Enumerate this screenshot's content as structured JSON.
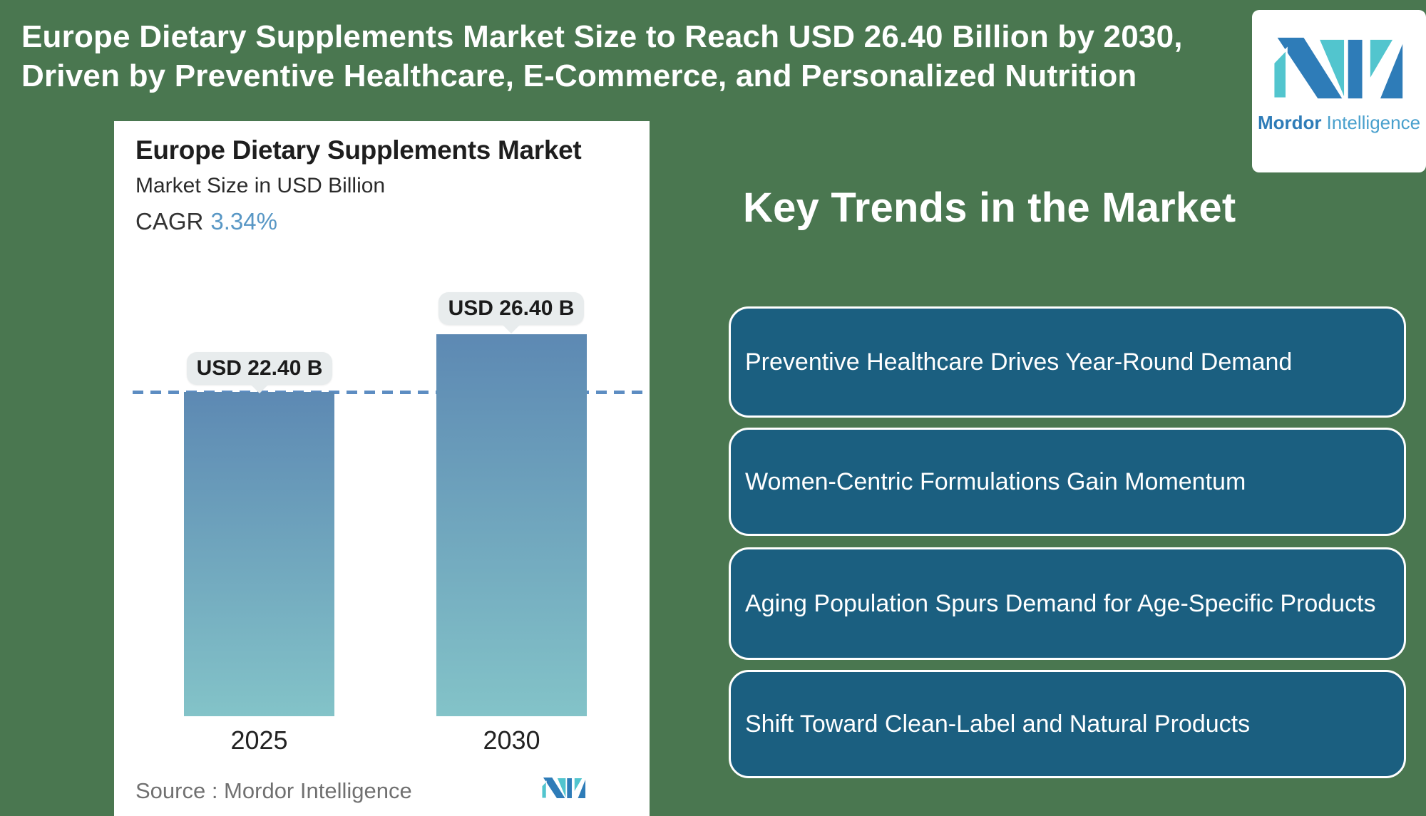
{
  "page": {
    "background_color": "#4a7750"
  },
  "header": {
    "line1": "Europe Dietary Supplements Market Size to Reach USD 26.40 Billion by 2030,",
    "line2": "Driven by Preventive Healthcare, E-Commerce, and Personalized Nutrition"
  },
  "brand": {
    "name_bold": "Mordor",
    "name_light": "Intelligence",
    "logo_dark_blue": "#2e7cb8",
    "logo_teal": "#52c5ce"
  },
  "chart_panel": {
    "title": "Europe Dietary Supplements Market",
    "subtitle": "Market Size in USD Billion",
    "cagr_label": "CAGR",
    "cagr_value": "3.34%",
    "source_text": "Source :  Mordor Intelligence"
  },
  "chart_data": {
    "type": "bar",
    "title": "Europe Dietary Supplements Market",
    "ylabel": "Market Size in USD Billion",
    "categories": [
      "2025",
      "2030"
    ],
    "values": [
      22.4,
      26.4
    ],
    "bar_labels": [
      "USD 22.40 B",
      "USD 26.40 B"
    ],
    "cagr_percent": 3.34,
    "ylim": [
      0,
      28
    ],
    "grid": "off",
    "legend": "none",
    "reference_line_value": 22.4,
    "reference_line_style": "dashed",
    "reference_line_color": "#5d8dc2",
    "bar_gradient": [
      "#5d89b3",
      "#83c3c8"
    ],
    "label_pill_color": "#e8eced"
  },
  "trends": {
    "title": "Key Trends in the Market",
    "box_color": "#1b5f80",
    "items": [
      {
        "label": "Preventive Healthcare Drives Year-Round Demand"
      },
      {
        "label": "Women-Centric Formulations Gain Momentum"
      },
      {
        "label": "Aging Population Spurs Demand for Age-Specific Products"
      },
      {
        "label": "Shift Toward Clean-Label and Natural Products"
      }
    ]
  }
}
